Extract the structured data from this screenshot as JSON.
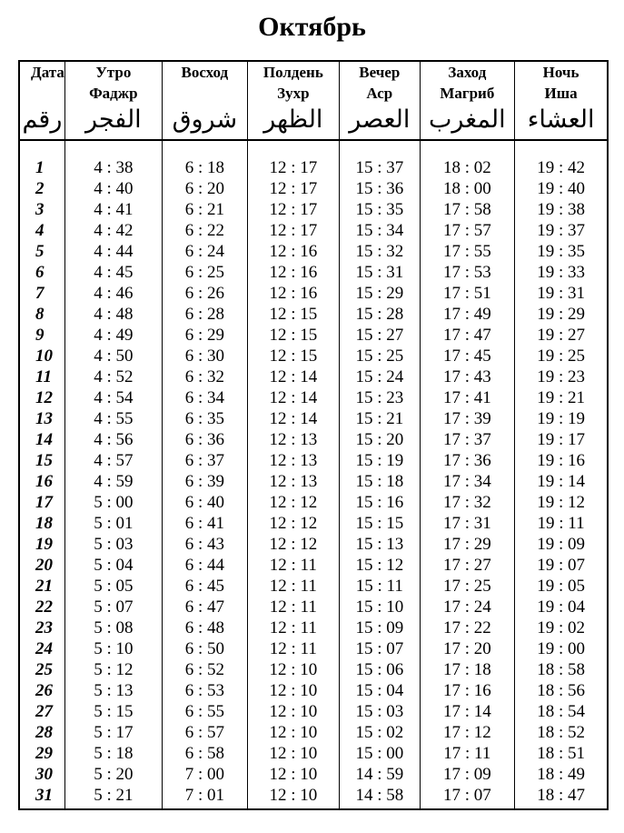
{
  "title": "Октябрь",
  "columns": [
    {
      "ru": [
        "Дата"
      ],
      "ar": "رقم"
    },
    {
      "ru": [
        "Утро",
        "Фаджр"
      ],
      "ar": "الفجر"
    },
    {
      "ru": [
        "Восход"
      ],
      "ar": "شروق"
    },
    {
      "ru": [
        "Полдень",
        "Зухр"
      ],
      "ar": "الظهر"
    },
    {
      "ru": [
        "Вечер",
        "Аср"
      ],
      "ar": "العصر"
    },
    {
      "ru": [
        "Заход",
        "Магриб"
      ],
      "ar": "المغرب"
    },
    {
      "ru": [
        "Ночь",
        "Иша"
      ],
      "ar": "العشاء"
    }
  ],
  "rows": [
    [
      "1",
      "4 : 38",
      "6 : 18",
      "12 : 17",
      "15 : 37",
      "18 : 02",
      "19 : 42"
    ],
    [
      "2",
      "4 : 40",
      "6 : 20",
      "12 : 17",
      "15 : 36",
      "18 : 00",
      "19 : 40"
    ],
    [
      "3",
      "4 : 41",
      "6 : 21",
      "12 : 17",
      "15 : 35",
      "17 : 58",
      "19 : 38"
    ],
    [
      "4",
      "4 : 42",
      "6 : 22",
      "12 : 17",
      "15 : 34",
      "17 : 57",
      "19 : 37"
    ],
    [
      "5",
      "4 : 44",
      "6 : 24",
      "12 : 16",
      "15 : 32",
      "17 : 55",
      "19 : 35"
    ],
    [
      "6",
      "4 : 45",
      "6 : 25",
      "12 : 16",
      "15 : 31",
      "17 : 53",
      "19 : 33"
    ],
    [
      "7",
      "4 : 46",
      "6 : 26",
      "12 : 16",
      "15 : 29",
      "17 : 51",
      "19 : 31"
    ],
    [
      "8",
      "4 : 48",
      "6 : 28",
      "12 : 15",
      "15 : 28",
      "17 : 49",
      "19 : 29"
    ],
    [
      "9",
      "4 : 49",
      "6 : 29",
      "12 : 15",
      "15 : 27",
      "17 : 47",
      "19 : 27"
    ],
    [
      "10",
      "4 : 50",
      "6 : 30",
      "12 : 15",
      "15 : 25",
      "17 : 45",
      "19 : 25"
    ],
    [
      "11",
      "4 : 52",
      "6 : 32",
      "12 : 14",
      "15 : 24",
      "17 : 43",
      "19 : 23"
    ],
    [
      "12",
      "4 : 54",
      "6 : 34",
      "12 : 14",
      "15 : 23",
      "17 : 41",
      "19 : 21"
    ],
    [
      "13",
      "4 : 55",
      "6 : 35",
      "12 : 14",
      "15 : 21",
      "17 : 39",
      "19 : 19"
    ],
    [
      "14",
      "4 : 56",
      "6 : 36",
      "12 : 13",
      "15 : 20",
      "17 : 37",
      "19 : 17"
    ],
    [
      "15",
      "4 : 57",
      "6 : 37",
      "12 : 13",
      "15 : 19",
      "17 : 36",
      "19 : 16"
    ],
    [
      "16",
      "4 : 59",
      "6 : 39",
      "12 : 13",
      "15 : 18",
      "17 : 34",
      "19 : 14"
    ],
    [
      "17",
      "5 : 00",
      "6 : 40",
      "12 : 12",
      "15 : 16",
      "17 : 32",
      "19 : 12"
    ],
    [
      "18",
      "5 : 01",
      "6 : 41",
      "12 : 12",
      "15 : 15",
      "17 : 31",
      "19 : 11"
    ],
    [
      "19",
      "5 : 03",
      "6 : 43",
      "12 : 12",
      "15 : 13",
      "17 : 29",
      "19 : 09"
    ],
    [
      "20",
      "5 : 04",
      "6 : 44",
      "12 : 11",
      "15 : 12",
      "17 : 27",
      "19 : 07"
    ],
    [
      "21",
      "5 : 05",
      "6 : 45",
      "12 : 11",
      "15 : 11",
      "17 : 25",
      "19 : 05"
    ],
    [
      "22",
      "5 : 07",
      "6 : 47",
      "12 : 11",
      "15 : 10",
      "17 : 24",
      "19 : 04"
    ],
    [
      "23",
      "5 : 08",
      "6 : 48",
      "12 : 11",
      "15 : 09",
      "17 : 22",
      "19 : 02"
    ],
    [
      "24",
      "5 : 10",
      "6 : 50",
      "12 : 11",
      "15 : 07",
      "17 : 20",
      "19 : 00"
    ],
    [
      "25",
      "5 : 12",
      "6 : 52",
      "12 : 10",
      "15 : 06",
      "17 : 18",
      "18 : 58"
    ],
    [
      "26",
      "5 : 13",
      "6 : 53",
      "12 : 10",
      "15 : 04",
      "17 : 16",
      "18 : 56"
    ],
    [
      "27",
      "5 : 15",
      "6 : 55",
      "12 : 10",
      "15 : 03",
      "17 : 14",
      "18 : 54"
    ],
    [
      "28",
      "5 : 17",
      "6 : 57",
      "12 : 10",
      "15 : 02",
      "17 : 12",
      "18 : 52"
    ],
    [
      "29",
      "5 : 18",
      "6 : 58",
      "12 : 10",
      "15 : 00",
      "17 : 11",
      "18 : 51"
    ],
    [
      "30",
      "5 : 20",
      "7 : 00",
      "12 : 10",
      "14 : 59",
      "17 : 09",
      "18 : 49"
    ],
    [
      "31",
      "5 : 21",
      "7 : 01",
      "12 : 10",
      "14 : 58",
      "17 : 07",
      "18 : 47"
    ]
  ]
}
